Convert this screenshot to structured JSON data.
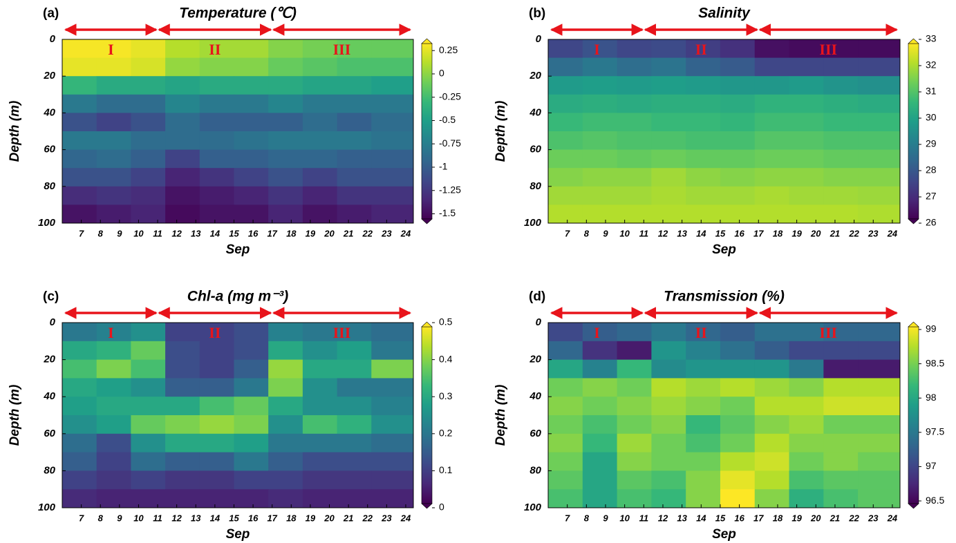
{
  "chart_data": [
    {
      "type": "heatmap",
      "panel_label": "(a)",
      "title": "Temperature (℃)",
      "x_label": "Sep",
      "y_label": "Depth (m)",
      "colormap": "viridis",
      "y_reversed": true,
      "xlim": [
        6.0,
        24.4
      ],
      "ylim": [
        0,
        100
      ],
      "xticks": [
        7,
        8,
        9,
        10,
        11,
        12,
        13,
        14,
        15,
        16,
        17,
        18,
        19,
        20,
        21,
        22,
        23,
        24
      ],
      "yticks": [
        0,
        20,
        40,
        60,
        80,
        100
      ],
      "clim": [
        -1.6,
        0.37
      ],
      "cticks": [
        0.25,
        0,
        -0.25,
        -0.5,
        -0.75,
        -1,
        -1.25,
        -1.5
      ],
      "periods": [
        {
          "label": "I",
          "start": 6.1,
          "end": 11.0
        },
        {
          "label": "II",
          "start": 11.0,
          "end": 17.0
        },
        {
          "label": "III",
          "start": 17.0,
          "end": 24.3
        }
      ],
      "x": [
        6.9,
        8.7,
        10.5,
        12.3,
        14.1,
        15.9,
        17.7,
        19.5,
        21.3,
        23.1
      ],
      "y": [
        5,
        15,
        25,
        35,
        45,
        55,
        65,
        75,
        85,
        95
      ],
      "z": [
        [
          0.35,
          0.35,
          0.3,
          0.15,
          0.1,
          0.1,
          0.0,
          -0.05,
          -0.1,
          -0.1
        ],
        [
          0.3,
          0.3,
          0.25,
          0.05,
          0.0,
          0.0,
          -0.1,
          -0.15,
          -0.2,
          -0.2
        ],
        [
          -0.3,
          -0.4,
          -0.4,
          -0.45,
          -0.4,
          -0.4,
          -0.4,
          -0.45,
          -0.45,
          -0.5
        ],
        [
          -0.8,
          -0.9,
          -0.9,
          -0.7,
          -0.8,
          -0.8,
          -0.7,
          -0.8,
          -0.8,
          -0.8
        ],
        [
          -1.1,
          -1.2,
          -1.1,
          -0.9,
          -1.0,
          -1.0,
          -1.0,
          -0.9,
          -1.0,
          -0.9
        ],
        [
          -0.8,
          -0.8,
          -0.9,
          -0.9,
          -0.9,
          -0.85,
          -0.8,
          -0.8,
          -0.8,
          -0.85
        ],
        [
          -0.95,
          -0.9,
          -1.0,
          -1.2,
          -1.0,
          -1.0,
          -0.95,
          -0.95,
          -1.0,
          -1.0
        ],
        [
          -1.1,
          -1.1,
          -1.2,
          -1.4,
          -1.3,
          -1.2,
          -1.1,
          -1.2,
          -1.1,
          -1.1
        ],
        [
          -1.35,
          -1.3,
          -1.35,
          -1.5,
          -1.45,
          -1.4,
          -1.3,
          -1.4,
          -1.3,
          -1.3
        ],
        [
          -1.5,
          -1.45,
          -1.4,
          -1.55,
          -1.5,
          -1.5,
          -1.4,
          -1.5,
          -1.45,
          -1.4
        ]
      ]
    },
    {
      "type": "heatmap",
      "panel_label": "(b)",
      "title": "Salinity",
      "x_label": "Sep",
      "y_label": "Depth (m)",
      "colormap": "viridis",
      "y_reversed": true,
      "xlim": [
        6.0,
        24.4
      ],
      "ylim": [
        0,
        100
      ],
      "xticks": [
        7,
        8,
        9,
        10,
        11,
        12,
        13,
        14,
        15,
        16,
        17,
        18,
        19,
        20,
        21,
        22,
        23,
        24
      ],
      "yticks": [
        0,
        20,
        40,
        60,
        80,
        100
      ],
      "clim": [
        26,
        33
      ],
      "cticks": [
        33,
        32,
        31,
        30,
        29,
        28,
        27,
        26
      ],
      "periods": [
        {
          "label": "I",
          "start": 6.1,
          "end": 11.0
        },
        {
          "label": "II",
          "start": 11.0,
          "end": 17.0
        },
        {
          "label": "III",
          "start": 17.0,
          "end": 24.3
        }
      ],
      "x": [
        6.9,
        8.7,
        10.5,
        12.3,
        14.1,
        15.9,
        17.7,
        19.5,
        21.3,
        23.1
      ],
      "y": [
        5,
        15,
        25,
        35,
        45,
        55,
        65,
        75,
        85,
        95
      ],
      "z": [
        [
          27.5,
          27.8,
          27.5,
          27.6,
          27.3,
          27.0,
          26.3,
          26.2,
          26.2,
          26.2
        ],
        [
          28.5,
          28.8,
          28.5,
          28.7,
          28.2,
          28.0,
          27.5,
          27.5,
          27.5,
          27.5
        ],
        [
          29.8,
          29.9,
          29.8,
          29.9,
          29.8,
          29.7,
          29.7,
          29.8,
          29.6,
          29.5
        ],
        [
          30.3,
          30.4,
          30.3,
          30.4,
          30.4,
          30.3,
          30.5,
          30.5,
          30.4,
          30.3
        ],
        [
          30.7,
          30.8,
          30.8,
          30.7,
          30.7,
          30.6,
          30.8,
          30.8,
          30.7,
          30.7
        ],
        [
          31.0,
          31.1,
          31.0,
          31.0,
          30.9,
          30.9,
          31.1,
          31.1,
          31.0,
          31.0
        ],
        [
          31.4,
          31.4,
          31.3,
          31.4,
          31.3,
          31.3,
          31.4,
          31.4,
          31.3,
          31.3
        ],
        [
          31.7,
          31.8,
          31.8,
          32.0,
          31.8,
          31.7,
          31.8,
          31.8,
          31.7,
          31.7
        ],
        [
          32.0,
          32.0,
          32.0,
          32.1,
          32.0,
          32.0,
          32.1,
          32.0,
          32.0,
          31.95
        ],
        [
          32.2,
          32.2,
          32.2,
          32.2,
          32.2,
          32.2,
          32.2,
          32.2,
          32.2,
          32.15
        ]
      ]
    },
    {
      "type": "heatmap",
      "panel_label": "(c)",
      "title": "Chl-a (mg m⁻³)",
      "x_label": "Sep",
      "y_label": "Depth (m)",
      "colormap": "viridis",
      "y_reversed": true,
      "xlim": [
        6.0,
        24.4
      ],
      "ylim": [
        0,
        100
      ],
      "xticks": [
        7,
        8,
        9,
        10,
        11,
        12,
        13,
        14,
        15,
        16,
        17,
        18,
        19,
        20,
        21,
        22,
        23,
        24
      ],
      "yticks": [
        0,
        20,
        40,
        60,
        80,
        100
      ],
      "clim": [
        0,
        0.5
      ],
      "cticks": [
        0.5,
        0.4,
        0.3,
        0.2,
        0.1,
        0
      ],
      "periods": [
        {
          "label": "I",
          "start": 6.1,
          "end": 11.0
        },
        {
          "label": "II",
          "start": 11.0,
          "end": 17.0
        },
        {
          "label": "III",
          "start": 17.0,
          "end": 24.3
        }
      ],
      "x": [
        6.9,
        8.7,
        10.5,
        12.3,
        14.1,
        15.9,
        17.7,
        19.5,
        21.3,
        23.1
      ],
      "y": [
        5,
        15,
        25,
        35,
        45,
        55,
        65,
        75,
        85,
        95
      ],
      "z": [
        [
          0.2,
          0.22,
          0.25,
          0.1,
          0.1,
          0.12,
          0.22,
          0.2,
          0.2,
          0.18
        ],
        [
          0.3,
          0.32,
          0.38,
          0.12,
          0.1,
          0.12,
          0.3,
          0.25,
          0.28,
          0.2
        ],
        [
          0.35,
          0.4,
          0.35,
          0.12,
          0.1,
          0.15,
          0.42,
          0.3,
          0.3,
          0.4
        ],
        [
          0.3,
          0.28,
          0.25,
          0.15,
          0.15,
          0.2,
          0.4,
          0.25,
          0.2,
          0.2
        ],
        [
          0.28,
          0.3,
          0.3,
          0.3,
          0.35,
          0.38,
          0.3,
          0.25,
          0.25,
          0.22
        ],
        [
          0.25,
          0.28,
          0.38,
          0.4,
          0.42,
          0.4,
          0.25,
          0.35,
          0.32,
          0.25
        ],
        [
          0.18,
          0.12,
          0.25,
          0.3,
          0.3,
          0.28,
          0.2,
          0.2,
          0.2,
          0.18
        ],
        [
          0.15,
          0.1,
          0.18,
          0.15,
          0.15,
          0.2,
          0.15,
          0.12,
          0.12,
          0.12
        ],
        [
          0.1,
          0.08,
          0.1,
          0.08,
          0.08,
          0.1,
          0.1,
          0.08,
          0.08,
          0.08
        ],
        [
          0.06,
          0.05,
          0.05,
          0.05,
          0.05,
          0.05,
          0.06,
          0.05,
          0.05,
          0.05
        ]
      ]
    },
    {
      "type": "heatmap",
      "panel_label": "(d)",
      "title": "Transmission (%)",
      "x_label": "Sep",
      "y_label": "Depth (m)",
      "colormap": "viridis",
      "y_reversed": true,
      "xlim": [
        6.0,
        24.4
      ],
      "ylim": [
        0,
        100
      ],
      "xticks": [
        7,
        8,
        9,
        10,
        11,
        12,
        13,
        14,
        15,
        16,
        17,
        18,
        19,
        20,
        21,
        22,
        23,
        24
      ],
      "yticks": [
        0,
        20,
        40,
        60,
        80,
        100
      ],
      "clim": [
        96.4,
        99.1
      ],
      "cticks": [
        99,
        98.5,
        98,
        97.5,
        97,
        96.5
      ],
      "periods": [
        {
          "label": "I",
          "start": 6.1,
          "end": 11.0
        },
        {
          "label": "II",
          "start": 11.0,
          "end": 17.0
        },
        {
          "label": "III",
          "start": 17.0,
          "end": 24.3
        }
      ],
      "x": [
        6.9,
        8.7,
        10.5,
        12.3,
        14.1,
        15.9,
        17.7,
        19.5,
        21.3,
        23.1
      ],
      "y": [
        5,
        15,
        25,
        35,
        45,
        55,
        65,
        75,
        85,
        95
      ],
      "z": [
        [
          97.0,
          97.2,
          97.3,
          97.5,
          97.3,
          97.2,
          97.4,
          97.4,
          97.3,
          97.3
        ],
        [
          97.3,
          96.8,
          96.6,
          97.8,
          97.6,
          97.4,
          97.2,
          97.0,
          97.0,
          97.0
        ],
        [
          98.0,
          97.6,
          98.2,
          97.7,
          97.8,
          97.8,
          97.8,
          97.5,
          96.6,
          96.6
        ],
        [
          98.5,
          98.6,
          98.5,
          98.8,
          98.7,
          98.8,
          98.7,
          98.6,
          98.8,
          98.8
        ],
        [
          98.6,
          98.5,
          98.6,
          98.7,
          98.6,
          98.5,
          98.8,
          98.8,
          98.9,
          98.9
        ],
        [
          98.5,
          98.3,
          98.5,
          98.6,
          98.2,
          98.4,
          98.6,
          98.7,
          98.5,
          98.5
        ],
        [
          98.6,
          98.2,
          98.7,
          98.5,
          98.3,
          98.5,
          98.8,
          98.6,
          98.6,
          98.6
        ],
        [
          98.5,
          98.0,
          98.6,
          98.5,
          98.5,
          98.8,
          98.9,
          98.5,
          98.6,
          98.5
        ],
        [
          98.4,
          98.0,
          98.4,
          98.3,
          98.6,
          99.0,
          98.8,
          98.3,
          98.4,
          98.4
        ],
        [
          98.3,
          98.0,
          98.3,
          98.2,
          98.6,
          99.1,
          98.6,
          98.1,
          98.3,
          98.4
        ]
      ]
    }
  ]
}
